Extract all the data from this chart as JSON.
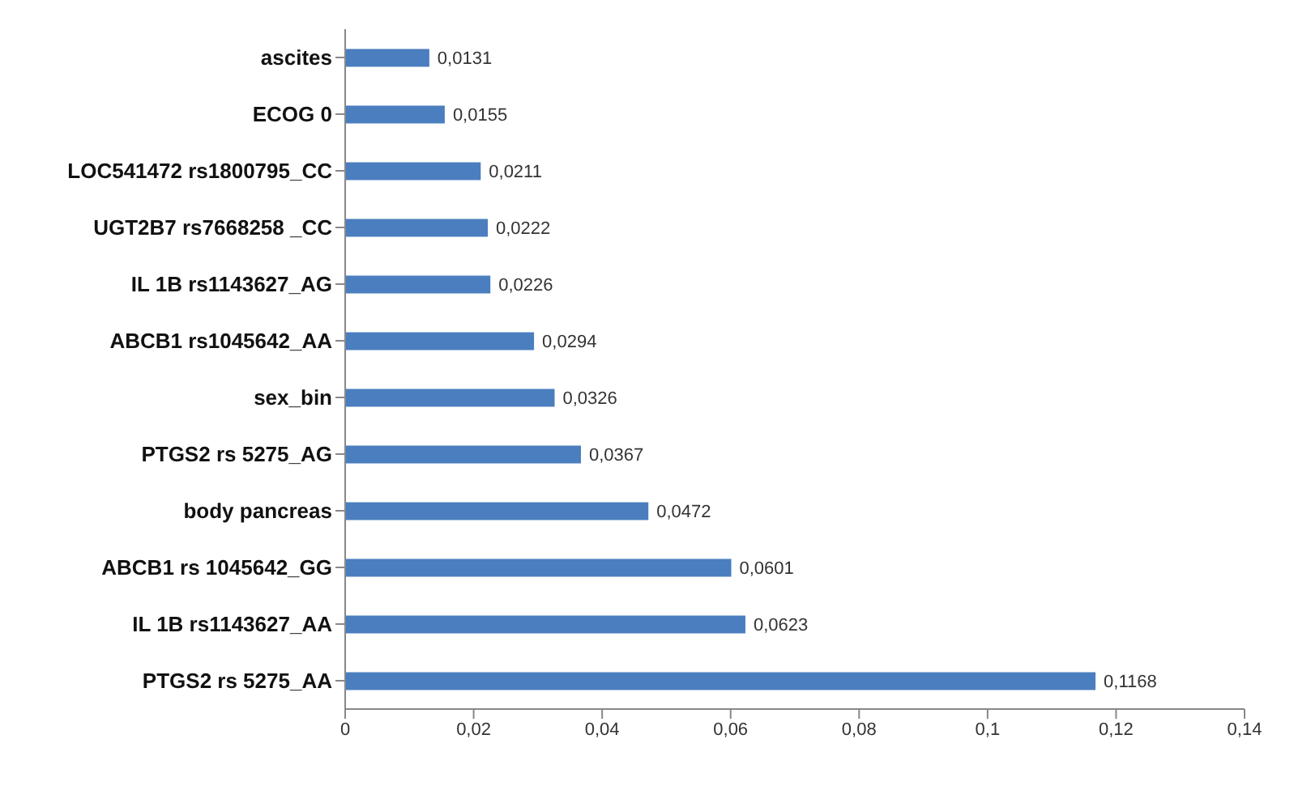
{
  "chart_data": {
    "type": "bar",
    "orientation": "horizontal",
    "categories": [
      "ascites",
      "ECOG 0",
      "LOC541472 rs1800795_CC",
      "UGT2B7  rs7668258 _CC",
      "IL 1B rs1143627_AG",
      "ABCB1 rs1045642_AA",
      "sex_bin",
      "PTGS2 rs 5275_AG",
      "body pancreas",
      "ABCB1 rs 1045642_GG",
      "IL 1B rs1143627_AA",
      "PTGS2 rs 5275_AA"
    ],
    "values": [
      0.0131,
      0.0155,
      0.0211,
      0.0222,
      0.0226,
      0.0294,
      0.0326,
      0.0367,
      0.0472,
      0.0601,
      0.0623,
      0.1168
    ],
    "value_labels": [
      "0,0131",
      "0,0155",
      "0,0211",
      "0,0222",
      "0,0226",
      "0,0294",
      "0,0326",
      "0,0367",
      "0,0472",
      "0,0601",
      "0,0623",
      "0,1168"
    ],
    "color": "#4a7ebf",
    "xlim": [
      0,
      0.14
    ],
    "xticks": [
      0,
      {
        "value": 0.02,
        "label": "0,02"
      },
      {
        "value": 0.04,
        "label": "0,04"
      },
      {
        "value": 0.06,
        "label": "0,06"
      },
      {
        "value": 0.08,
        "label": "0,08"
      },
      {
        "value": 0.1,
        "label": "0,1"
      },
      {
        "value": 0.12,
        "label": "0,12"
      },
      {
        "value": 0.14,
        "label": "0,14"
      }
    ],
    "grid": false,
    "legend": false
  }
}
